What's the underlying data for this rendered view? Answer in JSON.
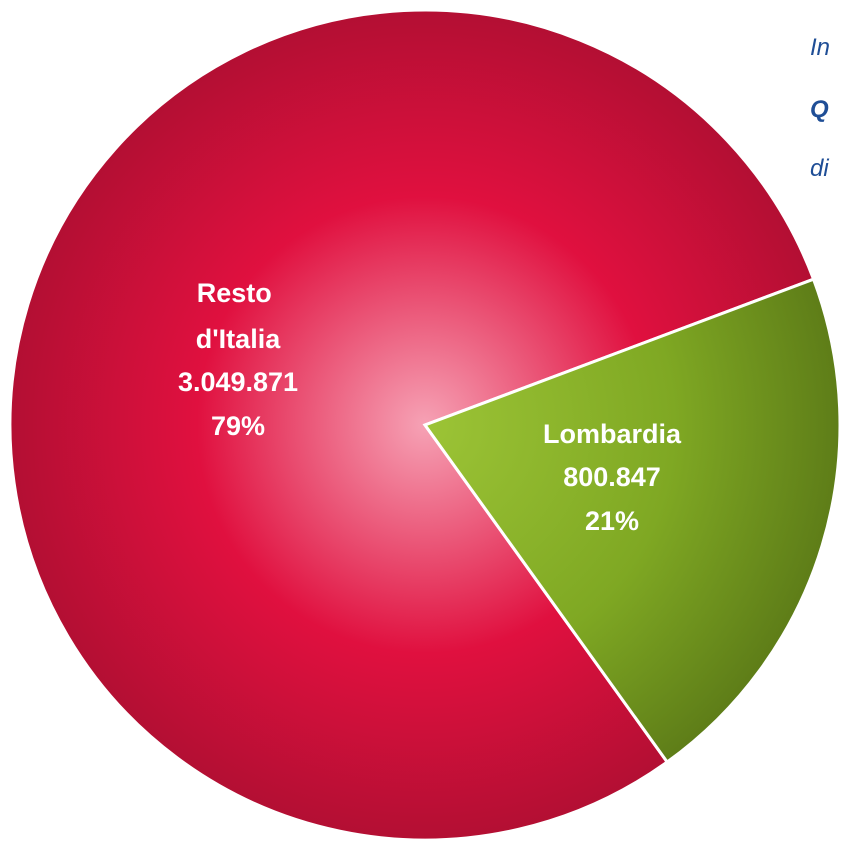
{
  "chart_data": {
    "type": "pie",
    "categories": [
      "Resto d'Italia",
      "Lombardia"
    ],
    "values": [
      3049871,
      800847
    ],
    "value_labels": [
      "3.049.871",
      "800.847"
    ],
    "percentages": [
      79,
      21
    ],
    "percentage_labels": [
      "79%",
      "21%"
    ],
    "colors": [
      "#e0103f",
      "#7fa823"
    ],
    "annotations": [
      "In",
      "Q",
      "di"
    ]
  }
}
